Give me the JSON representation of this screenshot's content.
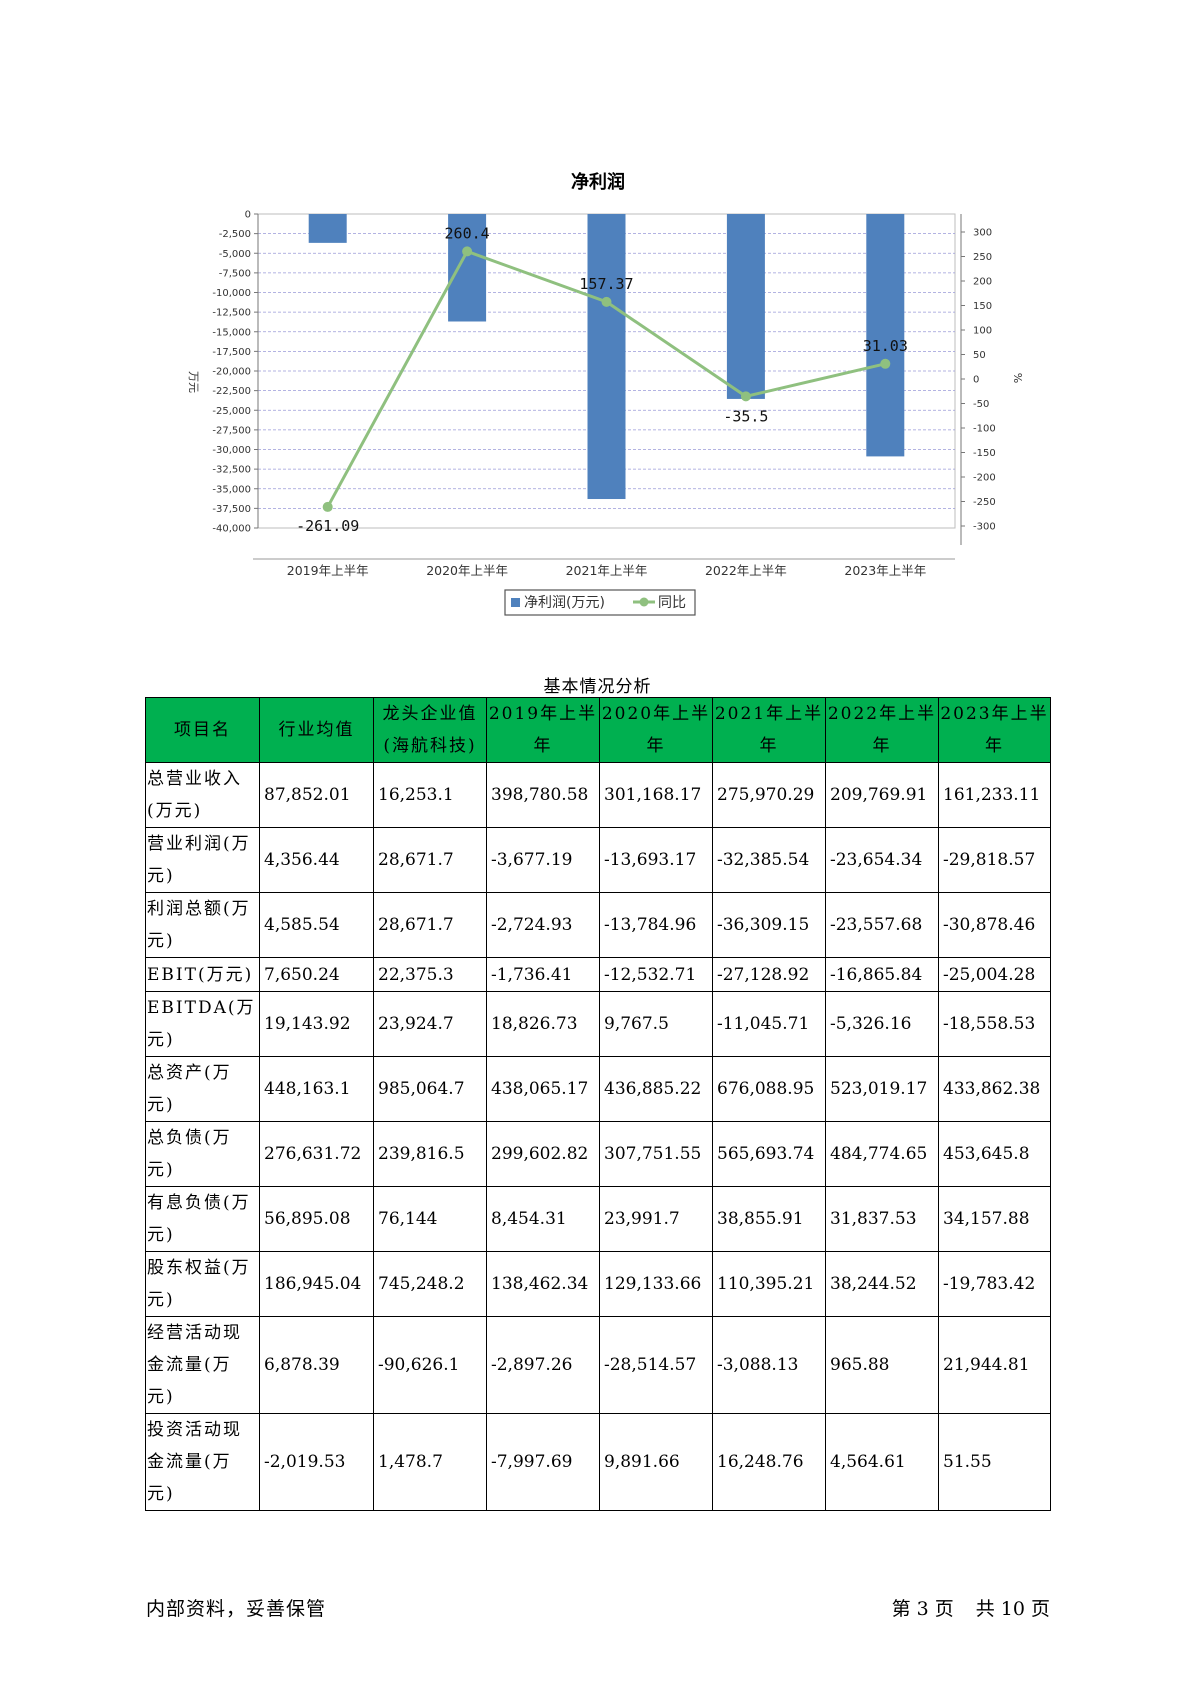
{
  "chart_data": {
    "type": "bar",
    "title": "净利润",
    "categories": [
      "2019年上半年",
      "2020年上半年",
      "2021年上半年",
      "2022年上半年",
      "2023年上半年"
    ],
    "series": [
      {
        "name": "净利润(万元)",
        "type": "bar",
        "axis": "left",
        "values": [
          -3677.19,
          -13693.17,
          -36309.15,
          -23557.68,
          -30878.46
        ],
        "color": "#4f81bd"
      },
      {
        "name": "同比",
        "type": "line",
        "axis": "right",
        "values": [
          -261.09,
          260.4,
          157.37,
          -35.5,
          31.03
        ],
        "color": "#8fc07f",
        "labels": [
          "-261.09",
          "260.4",
          "157.37",
          "-35.5",
          "31.03"
        ]
      }
    ],
    "ylabel": "万元",
    "y2label": "%",
    "ylim": [
      -40000,
      0
    ],
    "y2lim": [
      -300,
      300
    ],
    "yticks": [
      0,
      -2500,
      -5000,
      -7500,
      -10000,
      -12500,
      -15000,
      -17500,
      -20000,
      -22500,
      -25000,
      -27500,
      -30000,
      -32500,
      -35000,
      -37500,
      -40000
    ],
    "yticklabels": [
      "0",
      "-2,500",
      "-5,000",
      "-7,500",
      "-10,000",
      "-12,500",
      "-15,000",
      "-17,500",
      "-20,000",
      "-22,500",
      "-25,000",
      "-27,500",
      "-30,000",
      "-32,500",
      "-35,000",
      "-37,500",
      "-40,000"
    ],
    "y2ticks": [
      300,
      250,
      200,
      150,
      100,
      50,
      0,
      -50,
      -100,
      -150,
      -200,
      -250,
      -300
    ],
    "y2ticklabels": [
      "300",
      "250",
      "200",
      "150",
      "100",
      "50",
      "0",
      "-50",
      "-100",
      "-150",
      "-200",
      "-250",
      "-300"
    ],
    "grid": true,
    "legend": "bottom"
  },
  "table": {
    "caption": "基本情况分析",
    "headers": [
      "项目名",
      "行业均值",
      "龙头企业值(海航科技)",
      "2019年上半年",
      "2020年上半年",
      "2021年上半年",
      "2022年上半年",
      "2023年上半年"
    ],
    "rows": [
      [
        "总营业收入(万元)",
        "87,852.01",
        "16,253.1",
        "398,780.58",
        "301,168.17",
        "275,970.29",
        "209,769.91",
        "161,233.11"
      ],
      [
        "营业利润(万元)",
        "4,356.44",
        "28,671.7",
        "-3,677.19",
        "-13,693.17",
        "-32,385.54",
        "-23,654.34",
        "-29,818.57"
      ],
      [
        "利润总额(万元)",
        "4,585.54",
        "28,671.7",
        "-2,724.93",
        "-13,784.96",
        "-36,309.15",
        "-23,557.68",
        "-30,878.46"
      ],
      [
        "EBIT(万元)",
        "7,650.24",
        "22,375.3",
        "-1,736.41",
        "-12,532.71",
        "-27,128.92",
        "-16,865.84",
        "-25,004.28"
      ],
      [
        "EBITDA(万元)",
        "19,143.92",
        "23,924.7",
        "18,826.73",
        "9,767.5",
        "-11,045.71",
        "-5,326.16",
        "-18,558.53"
      ],
      [
        "总资产(万元)",
        "448,163.1",
        "985,064.7",
        "438,065.17",
        "436,885.22",
        "676,088.95",
        "523,019.17",
        "433,862.38"
      ],
      [
        "总负债(万元)",
        "276,631.72",
        "239,816.5",
        "299,602.82",
        "307,751.55",
        "565,693.74",
        "484,774.65",
        "453,645.8"
      ],
      [
        "有息负债(万元)",
        "56,895.08",
        "76,144",
        "8,454.31",
        "23,991.7",
        "38,855.91",
        "31,837.53",
        "34,157.88"
      ],
      [
        "股东权益(万元)",
        "186,945.04",
        "745,248.2",
        "138,462.34",
        "129,133.66",
        "110,395.21",
        "38,244.52",
        "-19,783.42"
      ],
      [
        "经营活动现金流量(万元)",
        "6,878.39",
        "-90,626.1",
        "-2,897.26",
        "-28,514.57",
        "-3,088.13",
        "965.88",
        "21,944.81"
      ],
      [
        "投资活动现金流量(万元)",
        "-2,019.53",
        "1,478.7",
        "-7,997.69",
        "9,891.66",
        "16,248.76",
        "4,564.61",
        "51.55"
      ]
    ]
  },
  "footer": {
    "left": "内部资料，妥善保管",
    "page_label_1": "第",
    "page_current": "3",
    "page_label_2": "页",
    "total_label_1": "共",
    "page_total": "10",
    "total_label_2": "页"
  },
  "colors": {
    "bar": "#4f81bd",
    "line": "#8fc07f",
    "grid": "#9a9ad8",
    "header_bg": "#00b050"
  }
}
